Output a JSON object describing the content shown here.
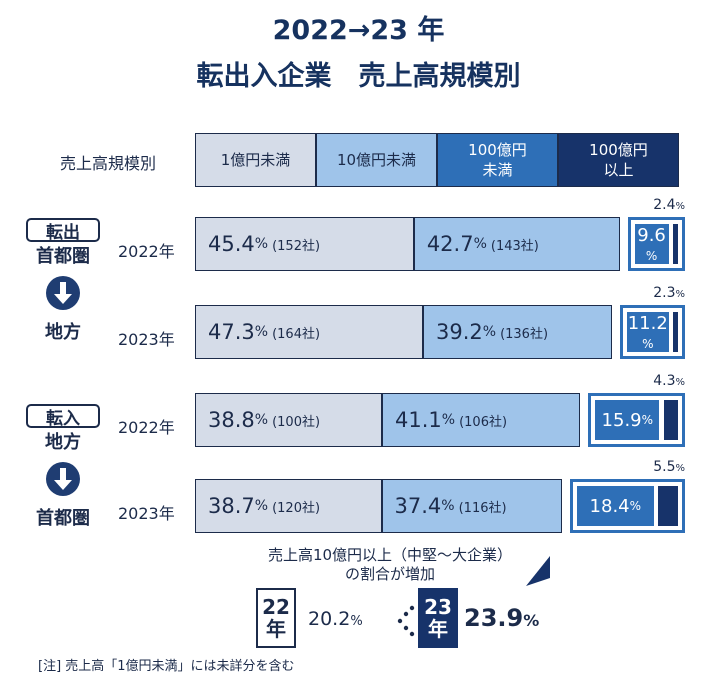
{
  "title_line1": "2022→23 年",
  "title_line2": "転出入企業　売上高規模別",
  "legend": {
    "label": "売上高規模別",
    "items": [
      {
        "label": "1億円未満",
        "color": "#d5dce8",
        "text_color": "#1c2b4a"
      },
      {
        "label": "10億円未満",
        "color": "#9fc4ea",
        "text_color": "#1c2b4a"
      },
      {
        "label": "100億円\n未満",
        "color": "#2e6fb7",
        "text_color": "#ffffff"
      },
      {
        "label": "100億円\n以上",
        "color": "#17336a",
        "text_color": "#ffffff"
      }
    ]
  },
  "groups": [
    {
      "box_label": "転出",
      "from": "首都圏",
      "to": "地方"
    },
    {
      "box_label": "転入",
      "from": "地方",
      "to": "首都圏"
    }
  ],
  "chart_data": {
    "type": "bar",
    "orientation": "horizontal",
    "stacked": true,
    "unit": "%",
    "rows": [
      {
        "group": "転出 首都圏→地方",
        "year": "2022年",
        "segments": [
          {
            "pct": "45.4",
            "count": "(152社)",
            "value": 45.4
          },
          {
            "pct": "42.7",
            "count": "(143社)",
            "value": 42.7
          },
          {
            "pct": "9.6",
            "count": "",
            "value": 9.6
          },
          {
            "pct": "2.4",
            "count": "",
            "value": 2.4
          }
        ]
      },
      {
        "group": "転出 首都圏→地方",
        "year": "2023年",
        "segments": [
          {
            "pct": "47.3",
            "count": "(164社)",
            "value": 47.3
          },
          {
            "pct": "39.2",
            "count": "(136社)",
            "value": 39.2
          },
          {
            "pct": "11.2",
            "count": "",
            "value": 11.2
          },
          {
            "pct": "2.3",
            "count": "",
            "value": 2.3
          }
        ]
      },
      {
        "group": "転入 地方→首都圏",
        "year": "2022年",
        "segments": [
          {
            "pct": "38.8",
            "count": "(100社)",
            "value": 38.8
          },
          {
            "pct": "41.1",
            "count": "(106社)",
            "value": 41.1
          },
          {
            "pct": "15.9",
            "count": "",
            "value": 15.9
          },
          {
            "pct": "4.3",
            "count": "",
            "value": 4.3
          }
        ]
      },
      {
        "group": "転入 地方→首都圏",
        "year": "2023年",
        "segments": [
          {
            "pct": "38.7",
            "count": "(120社)",
            "value": 38.7
          },
          {
            "pct": "37.4",
            "count": "(116社)",
            "value": 37.4
          },
          {
            "pct": "18.4",
            "count": "",
            "value": 18.4
          },
          {
            "pct": "5.5",
            "count": "",
            "value": 5.5
          }
        ]
      }
    ]
  },
  "note": {
    "line1": "売上高10億円以上（中堅～大企業）",
    "line2": "の割合が増加",
    "from_year_top": "22",
    "from_year_bottom": "年",
    "from_value": "20.2",
    "from_unit": "%",
    "to_year_top": "23",
    "to_year_bottom": "年",
    "to_value": "23.9",
    "to_unit": "%"
  },
  "footnote": "[注] 売上高「1億円未満」には未詳分を含む"
}
